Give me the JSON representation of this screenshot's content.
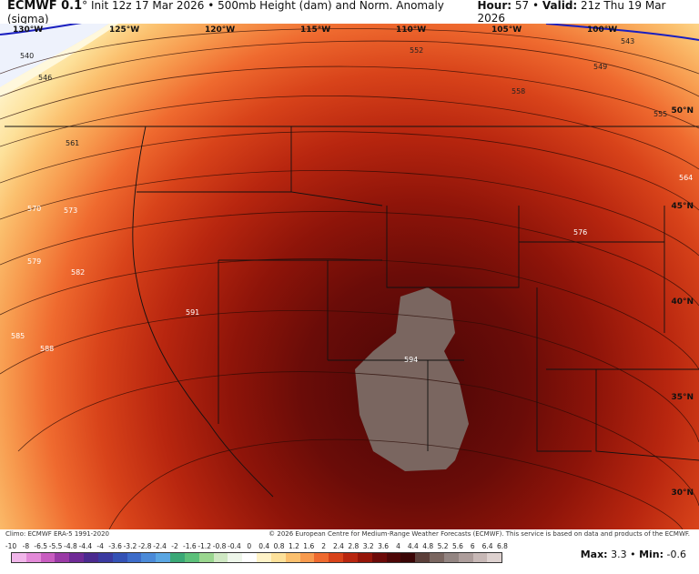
{
  "header": {
    "model": "ECMWF 0.1",
    "degree_mark": "°",
    "init": "Init 12z 17 Mar 2026",
    "product": "500mb Height (dam) and Norm. Anomaly (sigma)",
    "hour_label": "Hour:",
    "hour_value": "57",
    "valid_label": "Valid:",
    "valid_value": "21z Thu 19 Mar 2026"
  },
  "map": {
    "lon_labels": [
      "130°W",
      "125°W",
      "120°W",
      "115°W",
      "110°W",
      "105°W",
      "100°W"
    ],
    "lat_labels": [
      "50°N",
      "45°N",
      "40°N",
      "35°N",
      "30°N"
    ],
    "contour_labels": [
      "540",
      "543",
      "546",
      "549",
      "552",
      "555",
      "558",
      "561",
      "564",
      "570",
      "573",
      "576",
      "579",
      "582",
      "585",
      "588",
      "591",
      "594"
    ],
    "colors": {
      "high_anomaly": "#5a0a0a",
      "max_anomaly": "#7a6660",
      "mid_anomaly": "#c2300f",
      "low_anomaly": "#f5a05a",
      "neg_anomaly": "#e8eefc"
    }
  },
  "footer": {
    "climo": "Climo: ECMWF ERA-5 1991-2020",
    "copyright": "© 2026 European Centre for Medium-Range Weather Forecasts (ECMWF). This service is based on data and products of the ECMWF."
  },
  "scale": {
    "labels": [
      "-10",
      "-8",
      "-6.5",
      "-5.5",
      "-4.8",
      "-4.4",
      "-4",
      "-3.6",
      "-3.2",
      "-2.8",
      "-2.4",
      "-2",
      "-1.6",
      "-1.2",
      "-0.8",
      "-0.4",
      "0",
      "0.4",
      "0.8",
      "1.2",
      "1.6",
      "2",
      "2.4",
      "2.8",
      "3.2",
      "3.6",
      "4",
      "4.4",
      "4.8",
      "5.2",
      "5.6",
      "6",
      "6.4",
      "6.8"
    ],
    "colors": [
      "#f1b6ea",
      "#e38ad8",
      "#c85dc0",
      "#9a3aa6",
      "#6f2a96",
      "#4b2a8f",
      "#3b3aa0",
      "#3452b5",
      "#3d6cc9",
      "#4b8ad8",
      "#5aa6e2",
      "#3aa876",
      "#5cc07a",
      "#9ad68f",
      "#cfe8c3",
      "#eef6ea",
      "#ffffff",
      "#fff3c8",
      "#fde19a",
      "#fbc06e",
      "#f79a4e",
      "#ef6a2f",
      "#d8431a",
      "#b8260f",
      "#951509",
      "#6c0a08",
      "#4e0707",
      "#3b0606",
      "#5b3f3a",
      "#7a6660",
      "#938582",
      "#ad9d9b",
      "#c7b8b6",
      "#ddd1cf"
    ],
    "max_label": "Max:",
    "max_value": "3.3",
    "min_label": "Min:",
    "min_value": "-0.6"
  }
}
